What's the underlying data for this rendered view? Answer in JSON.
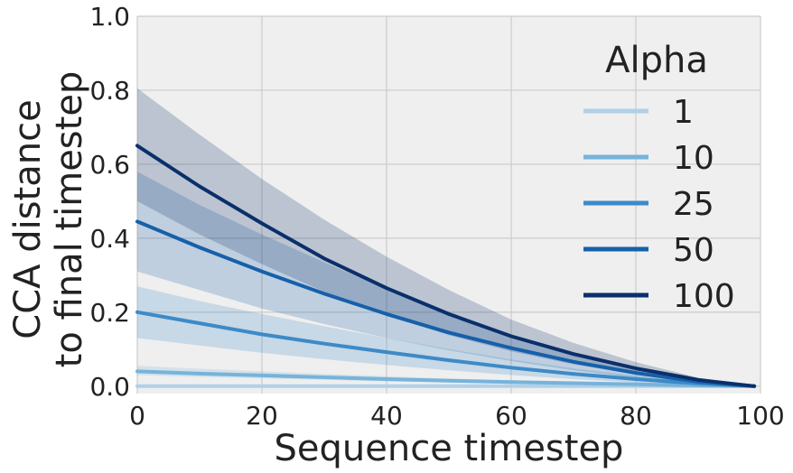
{
  "chart_data": {
    "type": "line",
    "title": "",
    "xlabel": "Sequence timestep",
    "ylabel_lines": [
      "CCA distance",
      "to final timestep"
    ],
    "xlim": [
      0,
      100
    ],
    "ylim": [
      -0.02,
      1.0
    ],
    "xticks": [
      0,
      20,
      40,
      60,
      80,
      100
    ],
    "xtick_labels": [
      "0",
      "20",
      "40",
      "60",
      "80",
      "100"
    ],
    "yticks": [
      0.0,
      0.2,
      0.4,
      0.6,
      0.8,
      1.0
    ],
    "ytick_labels": [
      "0.0",
      "0.2",
      "0.4",
      "0.6",
      "0.8",
      "1.0"
    ],
    "grid": true,
    "background": "#efefef",
    "grid_color": "#cbcbcb",
    "legend": {
      "title": "Alpha",
      "placement": "right"
    },
    "x": [
      0,
      10,
      20,
      30,
      40,
      50,
      60,
      70,
      80,
      90,
      99
    ],
    "series": [
      {
        "name": "1",
        "color": "#b0d0e8",
        "values": [
          0.0,
          0.0,
          0.0,
          0.0,
          0.0,
          0.0,
          0.0,
          0.0,
          0.0,
          0.0,
          0.0
        ],
        "lower": [
          0.0,
          0.0,
          0.0,
          0.0,
          0.0,
          0.0,
          0.0,
          0.0,
          0.0,
          0.0,
          0.0
        ],
        "upper": [
          0.005,
          0.004,
          0.003,
          0.003,
          0.002,
          0.002,
          0.001,
          0.001,
          0.001,
          0.0,
          0.0
        ]
      },
      {
        "name": "10",
        "color": "#77b3da",
        "values": [
          0.04,
          0.034,
          0.029,
          0.024,
          0.019,
          0.015,
          0.011,
          0.008,
          0.005,
          0.002,
          0.0
        ],
        "lower": [
          0.03,
          0.025,
          0.021,
          0.017,
          0.013,
          0.01,
          0.007,
          0.005,
          0.003,
          0.001,
          0.0
        ],
        "upper": [
          0.055,
          0.047,
          0.04,
          0.033,
          0.027,
          0.021,
          0.016,
          0.011,
          0.007,
          0.003,
          0.0
        ]
      },
      {
        "name": "25",
        "color": "#3d8ac7",
        "values": [
          0.2,
          0.17,
          0.14,
          0.115,
          0.092,
          0.07,
          0.05,
          0.033,
          0.019,
          0.007,
          0.0
        ],
        "lower": [
          0.13,
          0.11,
          0.09,
          0.073,
          0.057,
          0.043,
          0.03,
          0.019,
          0.01,
          0.003,
          0.0
        ],
        "upper": [
          0.27,
          0.23,
          0.195,
          0.162,
          0.13,
          0.1,
          0.072,
          0.048,
          0.028,
          0.01,
          0.0
        ]
      },
      {
        "name": "50",
        "color": "#1660aa",
        "values": [
          0.445,
          0.375,
          0.31,
          0.25,
          0.195,
          0.145,
          0.103,
          0.066,
          0.036,
          0.012,
          0.0
        ],
        "lower": [
          0.31,
          0.26,
          0.21,
          0.168,
          0.13,
          0.097,
          0.068,
          0.043,
          0.023,
          0.008,
          0.0
        ],
        "upper": [
          0.58,
          0.49,
          0.41,
          0.335,
          0.262,
          0.195,
          0.138,
          0.089,
          0.049,
          0.017,
          0.0
        ]
      },
      {
        "name": "100",
        "color": "#0a2f6b",
        "values": [
          0.65,
          0.54,
          0.44,
          0.345,
          0.265,
          0.195,
          0.135,
          0.087,
          0.048,
          0.017,
          0.0
        ],
        "lower": [
          0.5,
          0.41,
          0.33,
          0.255,
          0.192,
          0.138,
          0.094,
          0.059,
          0.032,
          0.011,
          0.0
        ],
        "upper": [
          0.805,
          0.68,
          0.56,
          0.45,
          0.35,
          0.26,
          0.18,
          0.117,
          0.065,
          0.023,
          0.0
        ]
      }
    ]
  }
}
